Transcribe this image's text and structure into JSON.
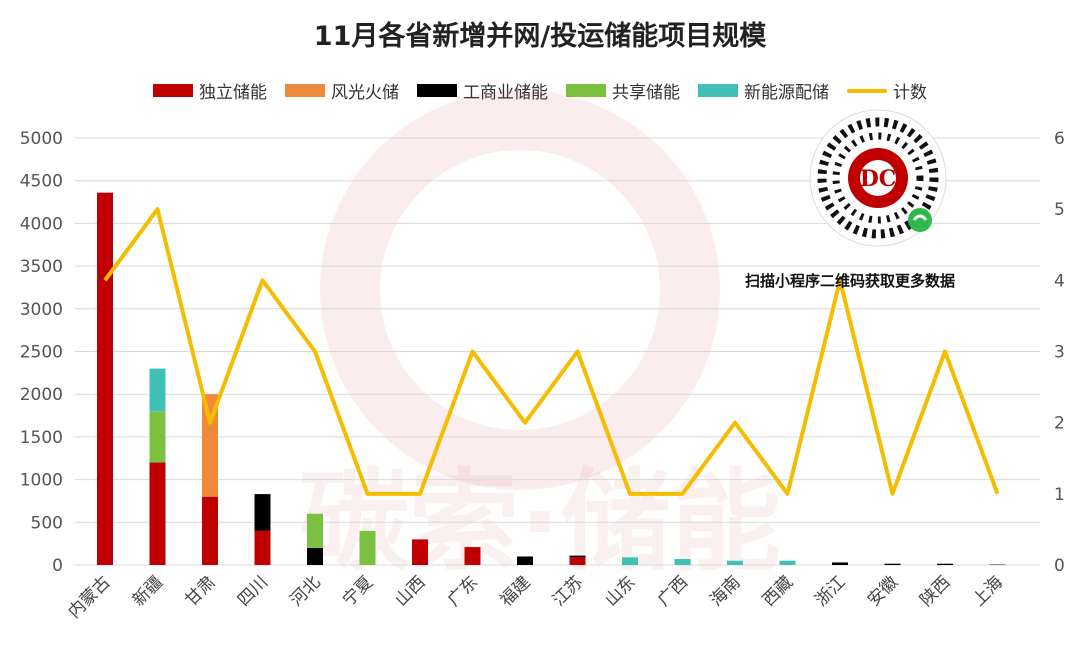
{
  "chart_data": {
    "type": "bar",
    "title": "11月各省新增并网/投运储能项目规模",
    "categories": [
      "内蒙古",
      "新疆",
      "甘肃",
      "四川",
      "河北",
      "宁夏",
      "山西",
      "广东",
      "福建",
      "江苏",
      "山东",
      "广西",
      "海南",
      "西藏",
      "浙江",
      "安徽",
      "陕西",
      "上海"
    ],
    "stacked": true,
    "series": [
      {
        "name": "独立储能",
        "color": "#c00000",
        "values": [
          4360,
          1200,
          800,
          400,
          0,
          0,
          300,
          210,
          0,
          90,
          0,
          0,
          0,
          0,
          0,
          0,
          0,
          0
        ]
      },
      {
        "name": "风光火储",
        "color": "#ed8b3a",
        "values": [
          0,
          0,
          1200,
          0,
          0,
          0,
          0,
          0,
          0,
          0,
          0,
          0,
          0,
          0,
          0,
          0,
          0,
          0
        ]
      },
      {
        "name": "工商业储能",
        "color": "#000000",
        "values": [
          0,
          0,
          0,
          430,
          200,
          0,
          0,
          0,
          100,
          20,
          0,
          0,
          0,
          0,
          30,
          15,
          15,
          5
        ]
      },
      {
        "name": "共享储能",
        "color": "#7cc042",
        "values": [
          0,
          600,
          0,
          0,
          400,
          400,
          0,
          0,
          0,
          0,
          0,
          0,
          0,
          0,
          0,
          0,
          0,
          0
        ]
      },
      {
        "name": "新能源配储",
        "color": "#3fc1b8",
        "values": [
          0,
          500,
          0,
          0,
          0,
          0,
          0,
          0,
          0,
          0,
          90,
          70,
          50,
          50,
          0,
          0,
          0,
          0
        ]
      }
    ],
    "line": {
      "name": "计数",
      "color": "#f5bc00",
      "axis": "right",
      "values": [
        4,
        5,
        2,
        4,
        3,
        1,
        1,
        3,
        2,
        3,
        1,
        1,
        2,
        1,
        4,
        1,
        3,
        1
      ]
    },
    "ylim": [
      0,
      5000
    ],
    "yticks": [
      0,
      500,
      1000,
      1500,
      2000,
      2500,
      3000,
      3500,
      4000,
      4500,
      5000
    ],
    "y2lim": [
      0,
      6
    ],
    "y2ticks": [
      0,
      1,
      2,
      3,
      4,
      5,
      6
    ],
    "grid": true,
    "legend_position": "top"
  },
  "overlay": {
    "scan_text": "扫描小程序二维码获取更多数据",
    "qr_logo": "DC",
    "watermark": "碳索·储能"
  }
}
